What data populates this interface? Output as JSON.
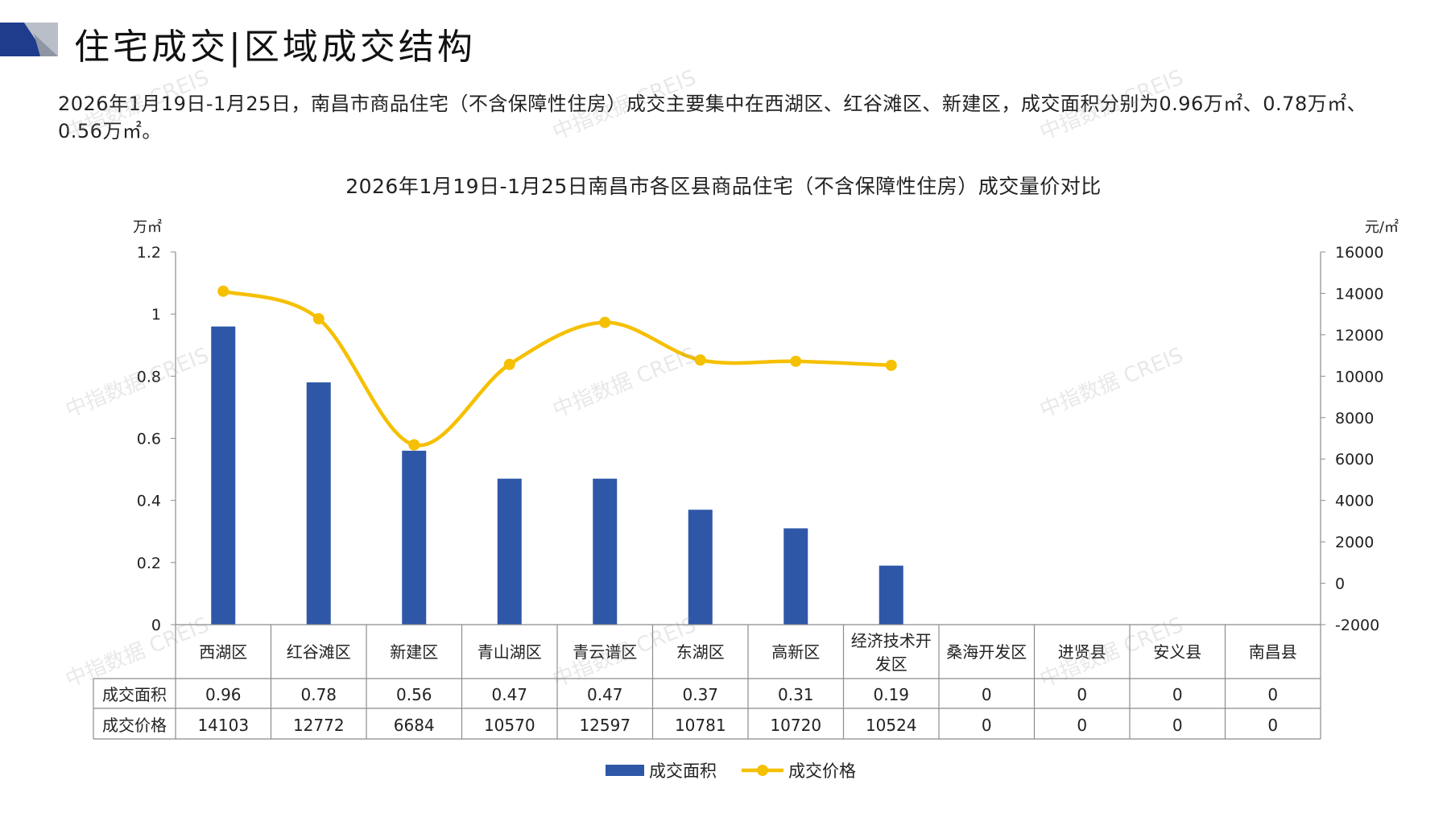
{
  "header": {
    "title": "住宅成交|区域成交结构"
  },
  "summary": {
    "text": "2026年1月19日-1月25日，南昌市商品住宅（不含保障性住房）成交主要集中在西湖区、红谷滩区、新建区，成交面积分别为0.96万㎡、0.78万㎡、0.56万㎡。"
  },
  "watermark": "中指数据 CREIS",
  "colors": {
    "bar": "#2e57a8",
    "line": "#f5c000",
    "axis": "#8c8c8c",
    "brand_dark": "#1f3b8c",
    "brand_light": "#b9bec8"
  },
  "chart_data": {
    "type": "bar",
    "title": "2026年1月19日-1月25日南昌市各区县商品住宅（不含保障性住房）成交量价对比",
    "y_unit_left": "万㎡",
    "y_unit_right": "元/㎡",
    "categories": [
      "西湖区",
      "红谷滩区",
      "新建区",
      "青山湖区",
      "青云谱区",
      "东湖区",
      "高新区",
      "经济技术开发区",
      "桑海开发区",
      "进贤县",
      "安义县",
      "南昌县"
    ],
    "category_lines": [
      [
        "西湖区"
      ],
      [
        "红谷滩区"
      ],
      [
        "新建区"
      ],
      [
        "青山湖区"
      ],
      [
        "青云谱区"
      ],
      [
        "东湖区"
      ],
      [
        "高新区"
      ],
      [
        "经济技术开",
        "发区"
      ],
      [
        "桑海开发区"
      ],
      [
        "进贤县"
      ],
      [
        "安义县"
      ],
      [
        "南昌县"
      ]
    ],
    "series": [
      {
        "name": "成交面积",
        "type": "bar",
        "axis": "left",
        "values": [
          0.96,
          0.78,
          0.56,
          0.47,
          0.47,
          0.37,
          0.31,
          0.19,
          0,
          0,
          0,
          0
        ]
      },
      {
        "name": "成交价格",
        "type": "line",
        "axis": "right",
        "values": [
          14103,
          12772,
          6684,
          10570,
          12597,
          10781,
          10720,
          10524,
          0,
          0,
          0,
          0
        ]
      }
    ],
    "y_left": {
      "min": 0,
      "max": 1.2,
      "ticks": [
        "1.2",
        "1",
        "0.8",
        "0.6",
        "0.4",
        "0.2",
        "0"
      ]
    },
    "y_right": {
      "min": -2000,
      "max": 16000,
      "ticks": [
        "16000",
        "14000",
        "12000",
        "10000",
        "8000",
        "6000",
        "4000",
        "2000",
        "0",
        "-2000"
      ]
    },
    "table_rows": [
      {
        "label": "成交面积",
        "cells": [
          "0.96",
          "0.78",
          "0.56",
          "0.47",
          "0.47",
          "0.37",
          "0.31",
          "0.19",
          "0",
          "0",
          "0",
          "0"
        ]
      },
      {
        "label": "成交价格",
        "cells": [
          "14103",
          "12772",
          "6684",
          "10570",
          "12597",
          "10781",
          "10720",
          "10524",
          "0",
          "0",
          "0",
          "0"
        ]
      }
    ],
    "line_points_shown": 8,
    "legend": {
      "position": "bottom",
      "items": [
        "成交面积",
        "成交价格"
      ]
    }
  }
}
